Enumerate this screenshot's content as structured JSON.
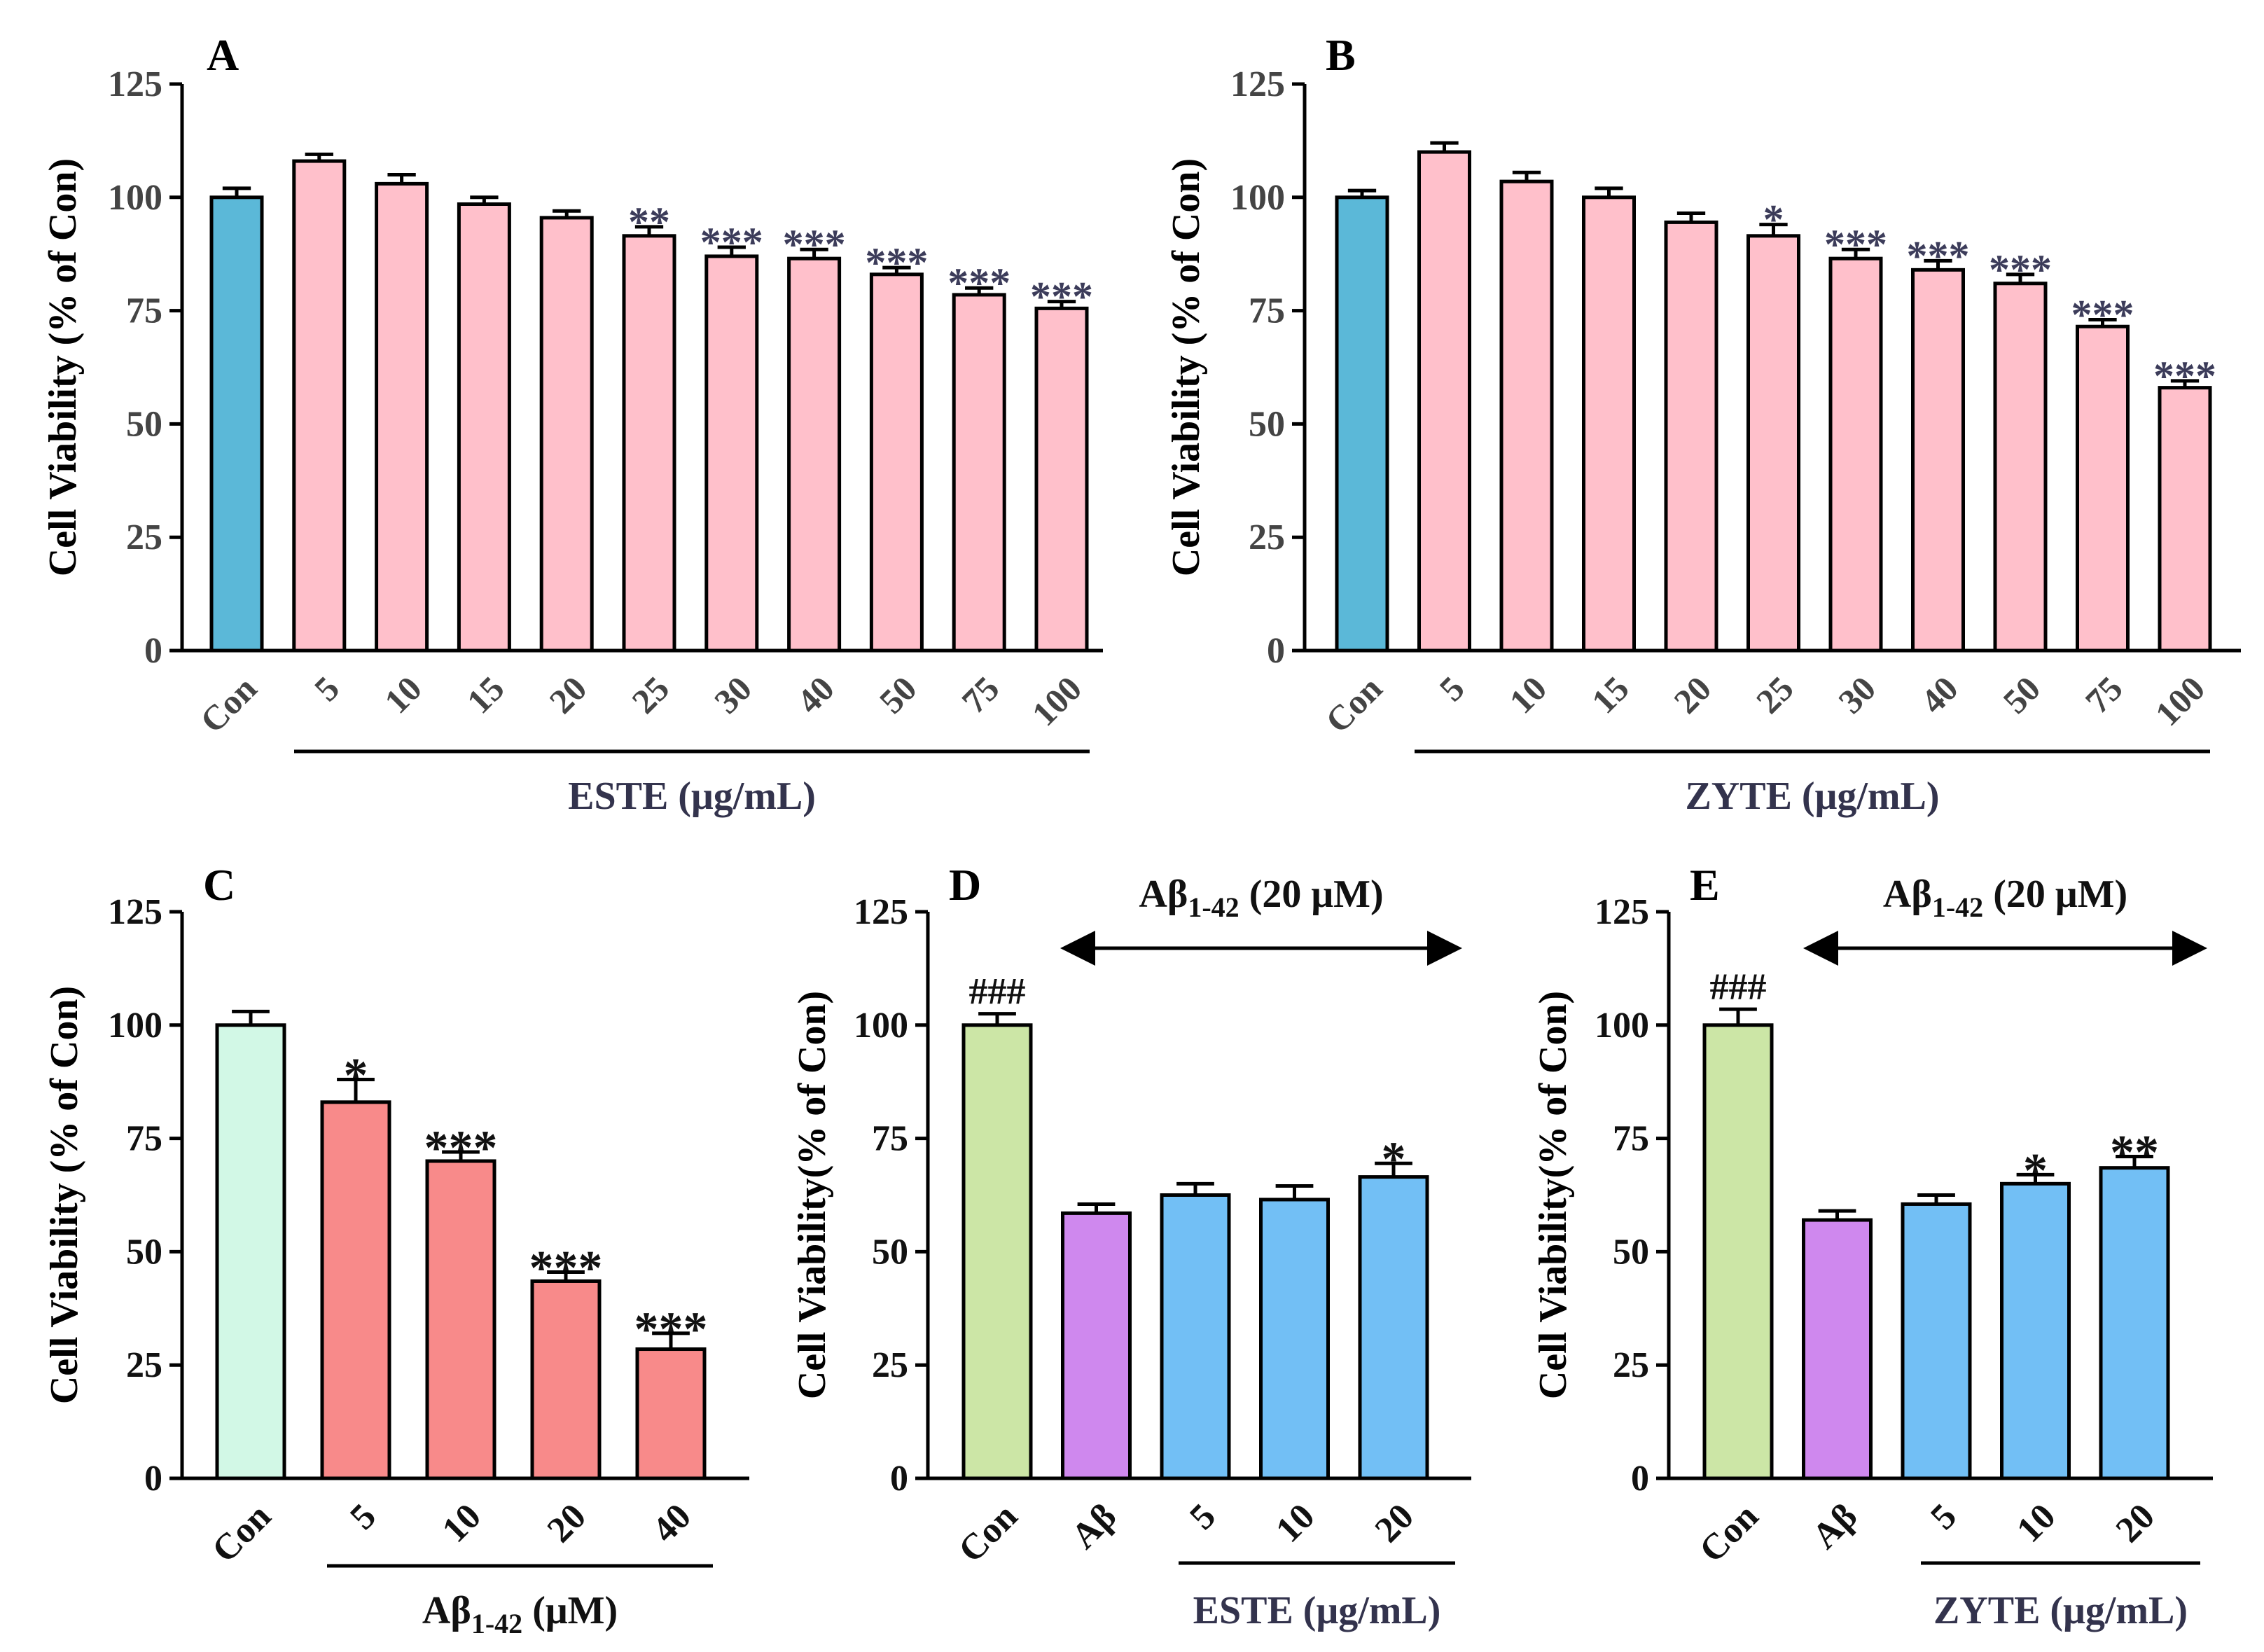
{
  "chart_data": [
    {
      "panel": "A",
      "type": "bar",
      "categories": [
        "Con",
        "5",
        "10",
        "15",
        "20",
        "25",
        "30",
        "40",
        "50",
        "75",
        "100"
      ],
      "values": [
        100,
        108,
        103,
        98.5,
        95.5,
        91.5,
        87,
        86.5,
        83,
        78.5,
        75.5
      ],
      "errors": [
        2,
        1.5,
        2,
        1.5,
        1.5,
        2,
        2,
        2,
        1.5,
        1.5,
        1.5
      ],
      "significance": [
        "",
        "",
        "",
        "",
        "",
        "**",
        "***",
        "***",
        "***",
        "***",
        "***"
      ],
      "colors": [
        "#5bb8d8",
        "#ffc0cb",
        "#ffc0cb",
        "#ffc0cb",
        "#ffc0cb",
        "#ffc0cb",
        "#ffc0cb",
        "#ffc0cb",
        "#ffc0cb",
        "#ffc0cb",
        "#ffc0cb"
      ],
      "ylabel": "Cell Viability (% of Con)",
      "yticks": [
        "0",
        "25",
        "50",
        "75",
        "100",
        "125"
      ],
      "ylim": [
        0,
        125
      ],
      "group_label": "ESTE (μg/mL)",
      "group_range": [
        1,
        10
      ],
      "sig_color": "#3c3c5a",
      "tick_color": "#444444"
    },
    {
      "panel": "B",
      "type": "bar",
      "categories": [
        "Con",
        "5",
        "10",
        "15",
        "20",
        "25",
        "30",
        "40",
        "50",
        "75",
        "100"
      ],
      "values": [
        100,
        110,
        103.5,
        100,
        94.5,
        91.5,
        86.5,
        84,
        81,
        71.5,
        58
      ],
      "errors": [
        1.5,
        2,
        2,
        2,
        2,
        2.5,
        2,
        2,
        2,
        1.5,
        1.5
      ],
      "significance": [
        "",
        "",
        "",
        "",
        "",
        "*",
        "***",
        "***",
        "***",
        "***",
        "***"
      ],
      "colors": [
        "#5bb8d8",
        "#ffc0cb",
        "#ffc0cb",
        "#ffc0cb",
        "#ffc0cb",
        "#ffc0cb",
        "#ffc0cb",
        "#ffc0cb",
        "#ffc0cb",
        "#ffc0cb",
        "#ffc0cb"
      ],
      "ylabel": "Cell Viability (% of Con)",
      "yticks": [
        "0",
        "25",
        "50",
        "75",
        "100",
        "125"
      ],
      "ylim": [
        0,
        125
      ],
      "group_label": "ZYTE (μg/mL)",
      "group_range": [
        1,
        10
      ],
      "sig_color": "#3c3c5a",
      "tick_color": "#444444"
    },
    {
      "panel": "C",
      "type": "bar",
      "categories": [
        "Con",
        "5",
        "10",
        "20",
        "40"
      ],
      "values": [
        100,
        83,
        70,
        43.5,
        28.5
      ],
      "errors": [
        3,
        5,
        2,
        2,
        3.5
      ],
      "significance": [
        "",
        "*",
        "***",
        "***",
        "***"
      ],
      "colors": [
        "#d2f8e6",
        "#f88a8a",
        "#f88a8a",
        "#f88a8a",
        "#f88a8a"
      ],
      "ylabel": "Cell Viability (% of Con)",
      "yticks": [
        "0",
        "25",
        "50",
        "75",
        "100",
        "125"
      ],
      "ylim": [
        0,
        125
      ],
      "group_label": "Aβ",
      "group_label_sub": "1-42",
      "group_label_tail": " (μM)",
      "group_range": [
        1,
        4
      ],
      "sig_color": "#111111",
      "tick_color": "#111111"
    },
    {
      "panel": "D",
      "type": "bar",
      "categories": [
        "Con",
        "Aβ",
        "5",
        "10",
        "20"
      ],
      "values": [
        100,
        58.5,
        62.5,
        61.5,
        66.5
      ],
      "errors": [
        2.5,
        2,
        2.5,
        3,
        3
      ],
      "significance": [
        "###",
        "",
        "",
        "",
        "*"
      ],
      "colors": [
        "#cce6a6",
        "#cf88ee",
        "#72bff5",
        "#72bff5",
        "#72bff5"
      ],
      "ylabel": "Cell Viability(% of Con)",
      "yticks": [
        "0",
        "25",
        "50",
        "75",
        "100",
        "125"
      ],
      "ylim": [
        0,
        125
      ],
      "group_label": "ESTE (μg/mL)",
      "group_range": [
        2,
        4
      ],
      "arrow_label": "Aβ",
      "arrow_label_sub": "1-42",
      "arrow_label_tail": " (20 μM)",
      "sig_color": "#111111",
      "tick_color": "#111111"
    },
    {
      "panel": "E",
      "type": "bar",
      "categories": [
        "Con",
        "Aβ",
        "5",
        "10",
        "20"
      ],
      "values": [
        100,
        57,
        60.5,
        65,
        68.5
      ],
      "errors": [
        3.5,
        2,
        2,
        2,
        2.5
      ],
      "significance": [
        "###",
        "",
        "",
        "*",
        "**"
      ],
      "colors": [
        "#cce6a6",
        "#cf88ee",
        "#72bff5",
        "#72bff5",
        "#72bff5"
      ],
      "ylabel": "Cell Viability(% of Con)",
      "yticks": [
        "0",
        "25",
        "50",
        "75",
        "100",
        "125"
      ],
      "ylim": [
        0,
        125
      ],
      "group_label": "ZYTE (μg/mL)",
      "group_range": [
        2,
        4
      ],
      "arrow_label": "Aβ",
      "arrow_label_sub": "1-42",
      "arrow_label_tail": " (20 μM)",
      "sig_color": "#111111",
      "tick_color": "#111111"
    }
  ]
}
